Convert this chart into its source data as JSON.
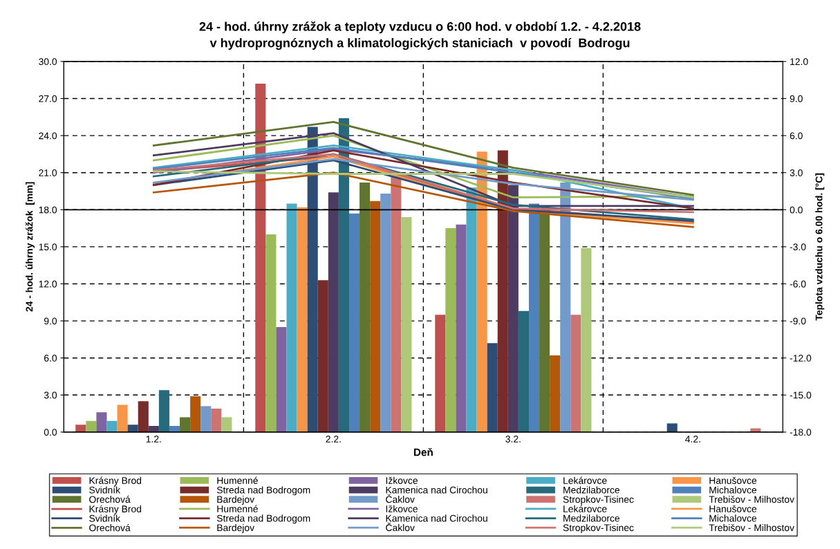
{
  "chart_data": {
    "type": "bar",
    "title": "24 - hod. úhrny zrážok a teploty vzducu o 6:00 hod. v období 1.2. - 4.2.2018",
    "subtitle": "v hydroprognóznych a klimatologických staniciach  v povodí  Bodrogu",
    "xlabel": "Deň",
    "ylabel": "24 - hod. úhrny zrážok  [mm]",
    "y2label": "Teplota vzduchu o 6.00 hod. [°C]",
    "categories": [
      "1.2.",
      "2.2.",
      "3.2.",
      "4.2."
    ],
    "ylim": [
      0,
      30
    ],
    "yticks": [
      {
        "value": 0,
        "label": "0.0"
      },
      {
        "value": 3,
        "label": "3.0"
      },
      {
        "value": 6,
        "label": "6.0"
      },
      {
        "value": 9,
        "label": "9.0"
      },
      {
        "value": 12,
        "label": "12.0"
      },
      {
        "value": 15,
        "label": "15.0"
      },
      {
        "value": 18,
        "label": "18.0"
      },
      {
        "value": 21,
        "label": "21.0"
      },
      {
        "value": 24,
        "label": "24.0"
      },
      {
        "value": 27,
        "label": "27.0"
      },
      {
        "value": 30,
        "label": "30.0"
      }
    ],
    "y2lim": [
      -18,
      12
    ],
    "y2ticks": [
      {
        "value": -18,
        "label": "-18.0"
      },
      {
        "value": -15,
        "label": "-15.0"
      },
      {
        "value": -12,
        "label": "-12.0"
      },
      {
        "value": -9,
        "label": "-9.0"
      },
      {
        "value": -6,
        "label": "-6.0"
      },
      {
        "value": -3,
        "label": "-3.0"
      },
      {
        "value": 0,
        "label": "0.0"
      },
      {
        "value": 3,
        "label": "3.0"
      },
      {
        "value": 6,
        "label": "6.0"
      },
      {
        "value": 9,
        "label": "9.0"
      },
      {
        "value": 12,
        "label": "12.0"
      }
    ],
    "grid": true,
    "legend": "bottom",
    "line_style": "solid",
    "marker": "none",
    "ref_lines": [
      {
        "axis": "y2",
        "value": 0,
        "label": null,
        "color": "#000000",
        "line_style": "solid"
      }
    ],
    "series": [
      {
        "name": "Krásny Brod",
        "color": "#c0504d",
        "values": [
          0.6,
          28.2,
          9.5,
          0
        ]
      },
      {
        "name": "Humenné",
        "color": "#9bbb59",
        "values": [
          0.9,
          16.0,
          16.5,
          0
        ]
      },
      {
        "name": "Ižkovce",
        "color": "#8064a2",
        "values": [
          1.6,
          8.5,
          16.8,
          0
        ]
      },
      {
        "name": "Lekárovce",
        "color": "#4bacc6",
        "values": [
          0.9,
          18.5,
          19.8,
          0
        ]
      },
      {
        "name": "Hanušovce",
        "color": "#f79646",
        "values": [
          2.2,
          18.2,
          22.7,
          0
        ]
      },
      {
        "name": "Svidník",
        "color": "#2c4d75",
        "values": [
          0.6,
          24.7,
          7.2,
          0.7
        ]
      },
      {
        "name": "Streda nad Bodrogom",
        "color": "#772c2a",
        "values": [
          2.5,
          12.3,
          22.8,
          0
        ]
      },
      {
        "name": "Kamenica nad Cirochou",
        "color": "#4d3b62",
        "values": [
          0.5,
          19.4,
          20.0,
          0
        ]
      },
      {
        "name": "Medzilaborce",
        "color": "#276a7c",
        "values": [
          3.4,
          25.4,
          9.8,
          0
        ]
      },
      {
        "name": "Michalovce",
        "color": "#4f81bd",
        "values": [
          0.5,
          17.7,
          18.5,
          0
        ]
      },
      {
        "name": "Orechová",
        "color": "#5f7530",
        "values": [
          1.2,
          20.2,
          17.7,
          0
        ]
      },
      {
        "name": "Bardejov",
        "color": "#b65708",
        "values": [
          2.9,
          18.7,
          6.2,
          0
        ]
      },
      {
        "name": "Čaklov",
        "color": "#729aca",
        "values": [
          2.1,
          19.3,
          20.2,
          0
        ]
      },
      {
        "name": "Stropkov-Tisinec",
        "color": "#cd7371",
        "values": [
          1.9,
          20.7,
          9.5,
          0.3
        ]
      },
      {
        "name": "Trebišov - Milhostov",
        "color": "#afc97a",
        "values": [
          1.2,
          17.4,
          14.9,
          0
        ]
      },
      {
        "name": "Krásny Brod",
        "type": "line",
        "axis": "y2",
        "color": "#c0504d",
        "values": [
          3.1,
          4.3,
          0.1,
          -1.0
        ]
      },
      {
        "name": "Humenné",
        "type": "line",
        "axis": "y2",
        "color": "#9bbb59",
        "values": [
          4.0,
          6.0,
          1.0,
          1.1
        ]
      },
      {
        "name": "Ižkovce",
        "type": "line",
        "axis": "y2",
        "color": "#8064a2",
        "values": [
          3.0,
          4.9,
          3.2,
          1.0
        ]
      },
      {
        "name": "Lekárovce",
        "type": "line",
        "axis": "y2",
        "color": "#4bacc6",
        "values": [
          3.4,
          5.2,
          3.2,
          0.1
        ]
      },
      {
        "name": "Hanušovce",
        "type": "line",
        "axis": "y2",
        "color": "#f79646",
        "values": [
          2.1,
          4.3,
          -0.1,
          -1.1
        ]
      },
      {
        "name": "Svidník",
        "type": "line",
        "axis": "y2",
        "color": "#2c4d75",
        "values": [
          2.0,
          4.0,
          0.0,
          -0.9
        ]
      },
      {
        "name": "Streda nad Bodrogom",
        "type": "line",
        "axis": "y2",
        "color": "#772c2a",
        "values": [
          2.0,
          4.8,
          2.2,
          0.1
        ]
      },
      {
        "name": "Kamenica nad Cirochou",
        "type": "line",
        "axis": "y2",
        "color": "#4d3b62",
        "values": [
          4.4,
          6.2,
          0.3,
          0.3
        ]
      },
      {
        "name": "Medzilaborce",
        "type": "line",
        "axis": "y2",
        "color": "#276a7c",
        "values": [
          2.7,
          4.5,
          0.4,
          -0.8
        ]
      },
      {
        "name": "Michalovce",
        "type": "line",
        "axis": "y2",
        "color": "#4f81bd",
        "values": [
          3.3,
          5.0,
          3.0,
          0.9
        ]
      },
      {
        "name": "Orechová",
        "type": "line",
        "axis": "y2",
        "color": "#5f7530",
        "values": [
          5.2,
          7.1,
          3.4,
          1.2
        ]
      },
      {
        "name": "Bardejov",
        "type": "line",
        "axis": "y2",
        "color": "#b65708",
        "values": [
          1.4,
          3.0,
          -0.1,
          -1.4
        ]
      },
      {
        "name": "Čaklov",
        "type": "line",
        "axis": "y2",
        "color": "#729aca",
        "values": [
          2.2,
          4.1,
          2.1,
          0.8
        ]
      },
      {
        "name": "Stropkov-Tisinec",
        "type": "line",
        "axis": "y2",
        "color": "#cd7371",
        "values": [
          3.2,
          4.5,
          0.1,
          -0.2
        ]
      },
      {
        "name": "Trebišov - Milhostov",
        "type": "line",
        "axis": "y2",
        "color": "#afc97a",
        "values": [
          3.1,
          2.9,
          2.9,
          1.0
        ]
      }
    ]
  }
}
